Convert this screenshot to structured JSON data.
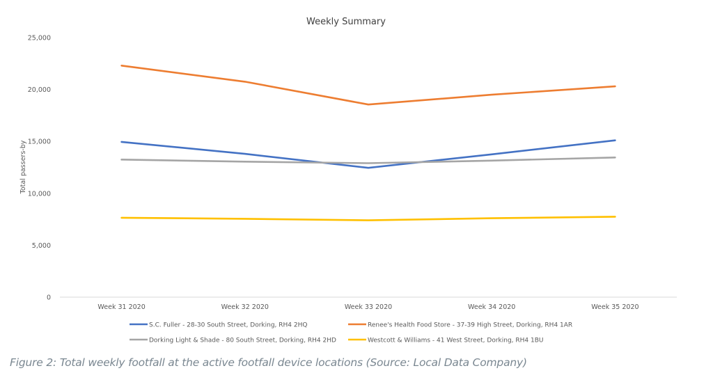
{
  "chart_data": {
    "type": "line",
    "title": "Weekly Summary",
    "xlabel": "",
    "ylabel": "Total passers-by",
    "categories": [
      "Week 31 2020",
      "Week 32 2020",
      "Week 33 2020",
      "Week 34 2020",
      "Week 35 2020"
    ],
    "ylim": [
      0,
      25000
    ],
    "yticks": [
      0,
      5000,
      10000,
      15000,
      20000,
      25000
    ],
    "ytick_labels": [
      "0",
      "5,000",
      "10,000",
      "15,000",
      "20,000",
      "25,000"
    ],
    "grid": false,
    "legend_position": "bottom",
    "series": [
      {
        "name": "S.C. Fuller - 28-30 South Street, Dorking, RH4 2HQ",
        "color": "#4472c4",
        "values": [
          14950,
          13800,
          12450,
          13750,
          15100
        ]
      },
      {
        "name": "Renee's Health Food Store - 37-39 High Street, Dorking, RH4 1AR",
        "color": "#ed7d31",
        "values": [
          22300,
          20750,
          18550,
          19500,
          20300
        ]
      },
      {
        "name": "Dorking Light & Shade - 80 South Street, Dorking, RH4 2HD",
        "color": "#a5a5a5",
        "values": [
          13250,
          13050,
          12900,
          13150,
          13450
        ]
      },
      {
        "name": "Westcott & Williams - 41 West Street, Dorking, RH4 1BU",
        "color": "#ffc000",
        "values": [
          7650,
          7550,
          7400,
          7600,
          7750
        ]
      }
    ]
  },
  "caption": "Figure 2: Total weekly footfall at the active footfall device locations (Source: Local Data Company)"
}
